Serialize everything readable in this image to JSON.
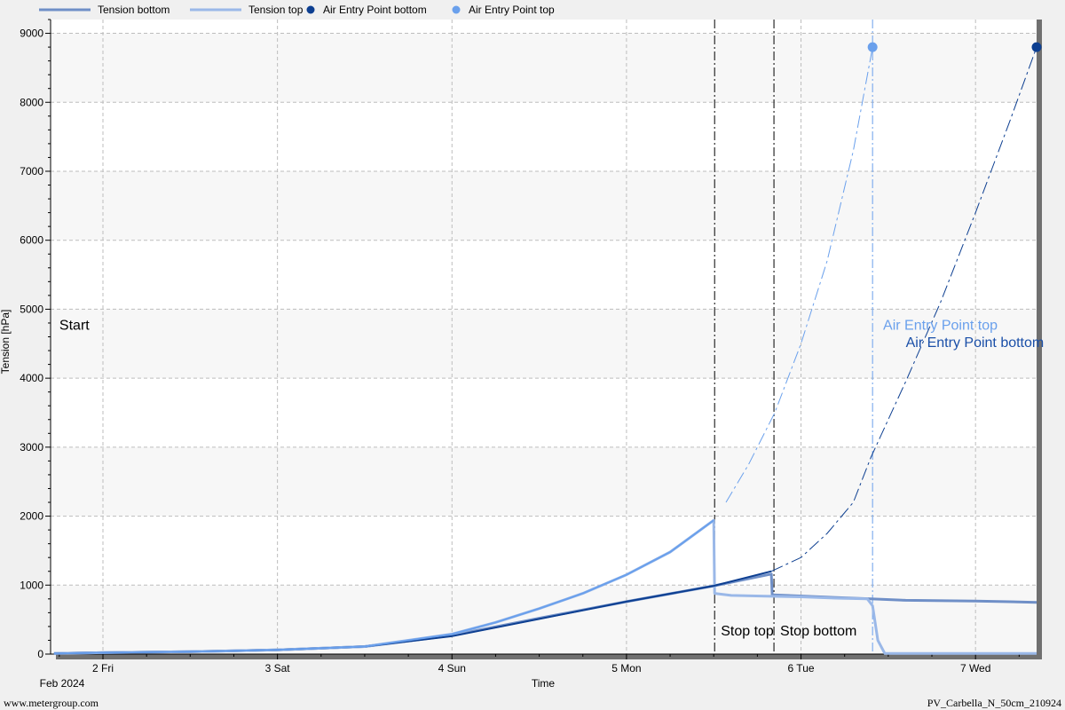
{
  "chart_data": {
    "type": "line",
    "xlabel": "Time",
    "ylabel": "Tension [hPa]",
    "ylim": [
      0,
      9200
    ],
    "xlim": [
      0.7,
      6.35
    ],
    "yticks": [
      0,
      1000,
      2000,
      3000,
      4000,
      5000,
      6000,
      7000,
      8000,
      9000
    ],
    "xticks": [
      {
        "x": 1,
        "label": "2 Fri"
      },
      {
        "x": 2,
        "label": "3 Sat"
      },
      {
        "x": 3,
        "label": "4 Sun"
      },
      {
        "x": 4,
        "label": "5 Mon"
      },
      {
        "x": 5,
        "label": "6 Tue"
      },
      {
        "x": 6,
        "label": "7 Wed"
      }
    ],
    "x_origin_label": "Feb 2024",
    "grid": true,
    "legend_position": "top",
    "x_unit_note": "days of February 2024 (x = day - 1)",
    "series": [
      {
        "name": "Tension bottom",
        "kind": "line",
        "color": "#6f8fc7",
        "width": 3,
        "x": [
          0.72,
          1.0,
          1.5,
          2.0,
          2.5,
          3.0,
          3.5,
          4.0,
          4.5,
          4.83,
          4.835,
          5.2,
          5.4,
          5.6,
          6.0,
          6.35
        ],
        "y": [
          10,
          20,
          35,
          60,
          110,
          270,
          520,
          760,
          990,
          1160,
          860,
          820,
          800,
          780,
          770,
          750
        ]
      },
      {
        "name": "Tension top",
        "kind": "line",
        "color": "#9ab8e8",
        "width": 3,
        "x": [
          0.72,
          1.0,
          1.5,
          2.0,
          2.5,
          3.0,
          3.25,
          3.5,
          3.75,
          4.0,
          4.25,
          4.5,
          4.505,
          4.6,
          4.8,
          5.0,
          5.2,
          5.38,
          5.41,
          5.44,
          5.48,
          6.0,
          6.35
        ],
        "y": [
          10,
          20,
          35,
          60,
          110,
          290,
          460,
          660,
          880,
          1150,
          1480,
          1940,
          880,
          850,
          840,
          830,
          810,
          800,
          700,
          200,
          10,
          10,
          10
        ]
      },
      {
        "name": "Tension bottom (trend)",
        "kind": "line",
        "color": "#0d3f91",
        "width": 2,
        "x": [
          0.72,
          1.0,
          1.5,
          2.0,
          2.5,
          3.0,
          3.5,
          4.0,
          4.5,
          4.83
        ],
        "y": [
          10,
          20,
          35,
          60,
          110,
          260,
          510,
          760,
          990,
          1200
        ]
      },
      {
        "name": "Tension top (trend)",
        "kind": "line",
        "color": "#6aa0ec",
        "width": 2,
        "x": [
          0.72,
          1.0,
          1.5,
          2.0,
          2.5,
          3.0,
          3.25,
          3.5,
          3.75,
          4.0,
          4.25,
          4.5
        ],
        "y": [
          10,
          20,
          35,
          60,
          110,
          290,
          460,
          660,
          880,
          1150,
          1480,
          1940
        ]
      },
      {
        "name": "Fit top",
        "kind": "dashdot",
        "color": "#6aa0ec",
        "width": 1,
        "x": [
          4.57,
          4.7,
          4.85,
          5.0,
          5.15,
          5.3,
          5.41
        ],
        "y": [
          2200,
          2750,
          3500,
          4500,
          5700,
          7300,
          8800
        ]
      },
      {
        "name": "Fit bottom",
        "kind": "dashdot",
        "color": "#0d3f91",
        "width": 1,
        "x": [
          4.83,
          5.0,
          5.15,
          5.3,
          5.4,
          5.6,
          5.8,
          6.0,
          6.2,
          6.35
        ],
        "y": [
          1200,
          1400,
          1750,
          2200,
          2850,
          3950,
          5100,
          6400,
          7750,
          8800
        ]
      }
    ],
    "points": [
      {
        "name": "Air Entry Point bottom",
        "x": 6.35,
        "y": 8800,
        "color": "#0d3f91"
      },
      {
        "name": "Air Entry Point top",
        "x": 5.41,
        "y": 8800,
        "color": "#6aa0ec"
      }
    ],
    "legend": [
      {
        "label": "Tension bottom",
        "kind": "line",
        "color": "#6f8fc7"
      },
      {
        "label": "Tension top",
        "kind": "line",
        "color": "#9ab8e8"
      },
      {
        "label": "Air Entry Point bottom",
        "kind": "point",
        "color": "#0d3f91"
      },
      {
        "label": "Air Entry Point top",
        "kind": "point",
        "color": "#6aa0ec"
      }
    ],
    "vlines": [
      {
        "x": 4.505,
        "label": "Stop top",
        "color": "#000000",
        "label_y": 270
      },
      {
        "x": 4.845,
        "label": "Stop bottom",
        "color": "#000000",
        "label_y": 270
      },
      {
        "x": 5.41,
        "label": "",
        "color": "#6aa0ec",
        "label_y": 0
      }
    ],
    "annotations": [
      {
        "text": "Start",
        "x": 0.72,
        "y": 4700,
        "color": "#000000"
      },
      {
        "text": "Air Entry Point top",
        "x": 5.44,
        "y": 4700,
        "color": "#6aa0ec"
      },
      {
        "text": "Air Entry Point bottom",
        "x": 5.57,
        "y": 4450,
        "color": "#1a4fa8"
      }
    ]
  },
  "footer": {
    "left": "www.metergroup.com",
    "right": "PV_Carbella_N_50cm_210924"
  },
  "x_origin_label": "Feb 2024"
}
